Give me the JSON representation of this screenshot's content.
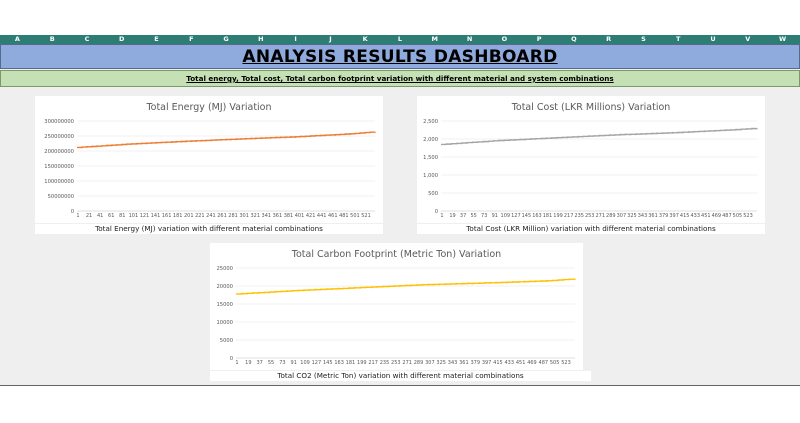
{
  "sheet": {
    "columns": [
      "A",
      "B",
      "C",
      "D",
      "E",
      "F",
      "G",
      "H",
      "I",
      "J",
      "K",
      "L",
      "M",
      "N",
      "O",
      "P",
      "Q",
      "R",
      "S",
      "T",
      "U",
      "V",
      "W"
    ],
    "title": "ANALYSIS RESULTS DASHBOARD",
    "subtitle": "Total energy, Total cost, Total carbon footprint variation with different material and system combinations",
    "header_color": "#8faadc",
    "subtitle_color": "#c5e0b4",
    "column_header_color": "#2e7d74"
  },
  "chart_data": [
    {
      "type": "line",
      "title": "Total Energy (MJ) Variation",
      "caption": "Total Energy (MJ) variation with different material combinations",
      "color": "#ed7d31",
      "ylim": [
        0,
        300000000
      ],
      "yticks": [
        "0",
        "50000000",
        "100000000",
        "150000000",
        "200000000",
        "250000000",
        "300000000"
      ],
      "xticks": [
        "1",
        "21",
        "41",
        "61",
        "81",
        "101",
        "121",
        "141",
        "161",
        "181",
        "201",
        "221",
        "241",
        "261",
        "281",
        "301",
        "321",
        "341",
        "361",
        "381",
        "401",
        "421",
        "441",
        "461",
        "481",
        "501",
        "521"
      ],
      "x": [
        1,
        100,
        200,
        300,
        400,
        500,
        540
      ],
      "y": [
        212000000,
        224000000,
        233000000,
        241000000,
        248000000,
        258000000,
        264000000
      ],
      "grid": true
    },
    {
      "type": "line",
      "title": "Total Cost (LKR Millions) Variation",
      "caption": "Total Cost (LKR Million) variation with different material combinations",
      "color": "#a5a5a5",
      "ylim": [
        0,
        2500
      ],
      "yticks": [
        "0",
        "500",
        "1,000",
        "1,500",
        "2,000",
        "2,500"
      ],
      "xticks": [
        "1",
        "19",
        "37",
        "55",
        "73",
        "91",
        "109",
        "127",
        "145",
        "163",
        "181",
        "199",
        "217",
        "235",
        "253",
        "271",
        "289",
        "307",
        "325",
        "343",
        "361",
        "379",
        "397",
        "415",
        "433",
        "451",
        "469",
        "487",
        "505",
        "523"
      ],
      "x": [
        1,
        100,
        200,
        300,
        400,
        500,
        540
      ],
      "y": [
        1850,
        1960,
        2040,
        2120,
        2180,
        2260,
        2300
      ],
      "grid": true
    },
    {
      "type": "line",
      "title": "Total Carbon Footprint (Metric Ton) Variation",
      "caption": "Total CO2 (Metric Ton) variation with different material combinations",
      "color": "#ffc000",
      "ylim": [
        0,
        25000
      ],
      "yticks": [
        "0",
        "5000",
        "10000",
        "15000",
        "20000",
        "25000"
      ],
      "xticks": [
        "1",
        "19",
        "37",
        "55",
        "73",
        "91",
        "109",
        "127",
        "145",
        "163",
        "181",
        "199",
        "217",
        "235",
        "253",
        "271",
        "289",
        "307",
        "325",
        "343",
        "361",
        "379",
        "397",
        "415",
        "433",
        "451",
        "469",
        "487",
        "505",
        "523"
      ],
      "x": [
        1,
        100,
        200,
        300,
        400,
        500,
        540
      ],
      "y": [
        17800,
        18800,
        19600,
        20400,
        20900,
        21500,
        22000
      ],
      "grid": true
    }
  ]
}
